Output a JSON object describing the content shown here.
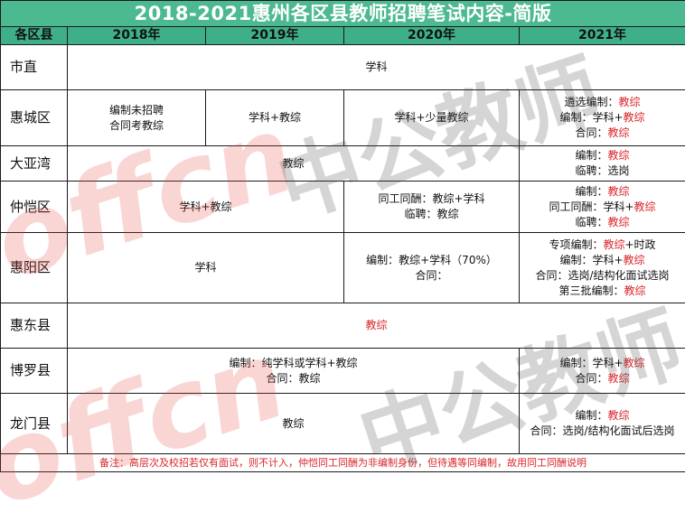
{
  "title": "2018-2021惠州各区县教师招聘笔试内容-简版",
  "headers": [
    "各区县",
    "2018年",
    "2019年",
    "2020年",
    "2021年"
  ],
  "colors": {
    "header_bg": "#3faf8a",
    "title_bg": "#4cb991",
    "accent_red": "#d9262a"
  },
  "rows": {
    "shizhi": {
      "district": "市直",
      "all": "学科"
    },
    "huicheng": {
      "district": "惠城区",
      "y2018": [
        "编制未招聘",
        "合同考教综"
      ],
      "y2019": "学科+教综",
      "y2020": "学科+少量教综",
      "y2021": [
        {
          "label": "遴选编制：",
          "value": "教综"
        },
        {
          "label": "编制：学科+",
          "value": "教综"
        },
        {
          "label": "合同：",
          "value": "教综"
        }
      ]
    },
    "dayawan": {
      "district": "大亚湾",
      "y2018_2020": "教综",
      "y2021": [
        {
          "label": "编制：",
          "value": "教综"
        },
        {
          "label": "临聘：选岗",
          "value": ""
        }
      ]
    },
    "zhongkai": {
      "district": "仲恺区",
      "y2018_2019": "学科+教综",
      "y2020": [
        "同工同酬：教综+学科",
        "临聘：教综"
      ],
      "y2021": [
        {
          "label": "编制：",
          "value": "教综"
        },
        {
          "label": "同工同酬：学科+",
          "value": "教综"
        },
        {
          "label": "临聘：",
          "value": "教综"
        }
      ]
    },
    "huiyang": {
      "district": "惠阳区",
      "y2018_2019": "学科",
      "y2020": [
        "编制：教综+学科（70%）",
        "合同："
      ],
      "y2021": [
        {
          "label": "专项编制：",
          "value": "教综",
          "suffix": "+时政"
        },
        {
          "label": "编制：学科+",
          "value": "教综",
          "suffix": ""
        },
        {
          "label": "合同：选岗/结构化面试选岗",
          "value": "",
          "suffix": ""
        },
        {
          "label": "第三批编制：",
          "value": "教综",
          "suffix": ""
        }
      ]
    },
    "huidong": {
      "district": "惠东县",
      "all": "教综"
    },
    "boluo": {
      "district": "博罗县",
      "y2018_2020": [
        "编制：纯学科或学科+教综",
        "合同：教综"
      ],
      "y2021": [
        {
          "label": "编制：学科+",
          "value": "教综"
        },
        {
          "label": "合同：",
          "value": "教综"
        }
      ]
    },
    "longmen": {
      "district": "龙门县",
      "y2018_2020": "教综",
      "y2021": [
        {
          "label": "编制：",
          "value": "教综"
        },
        {
          "label": "合同：选岗/结构化面试后选岗",
          "value": ""
        }
      ]
    }
  },
  "note": "备注：高层次及校招若仅有面试，则不计入，仲恺同工同酬为非编制身份，但待遇等同编制，故用同工同酬说明",
  "watermarks": {
    "brand_latin": "offcn",
    "brand_cn_1": "中公教师",
    "brand_cn_2": "中公教师"
  }
}
